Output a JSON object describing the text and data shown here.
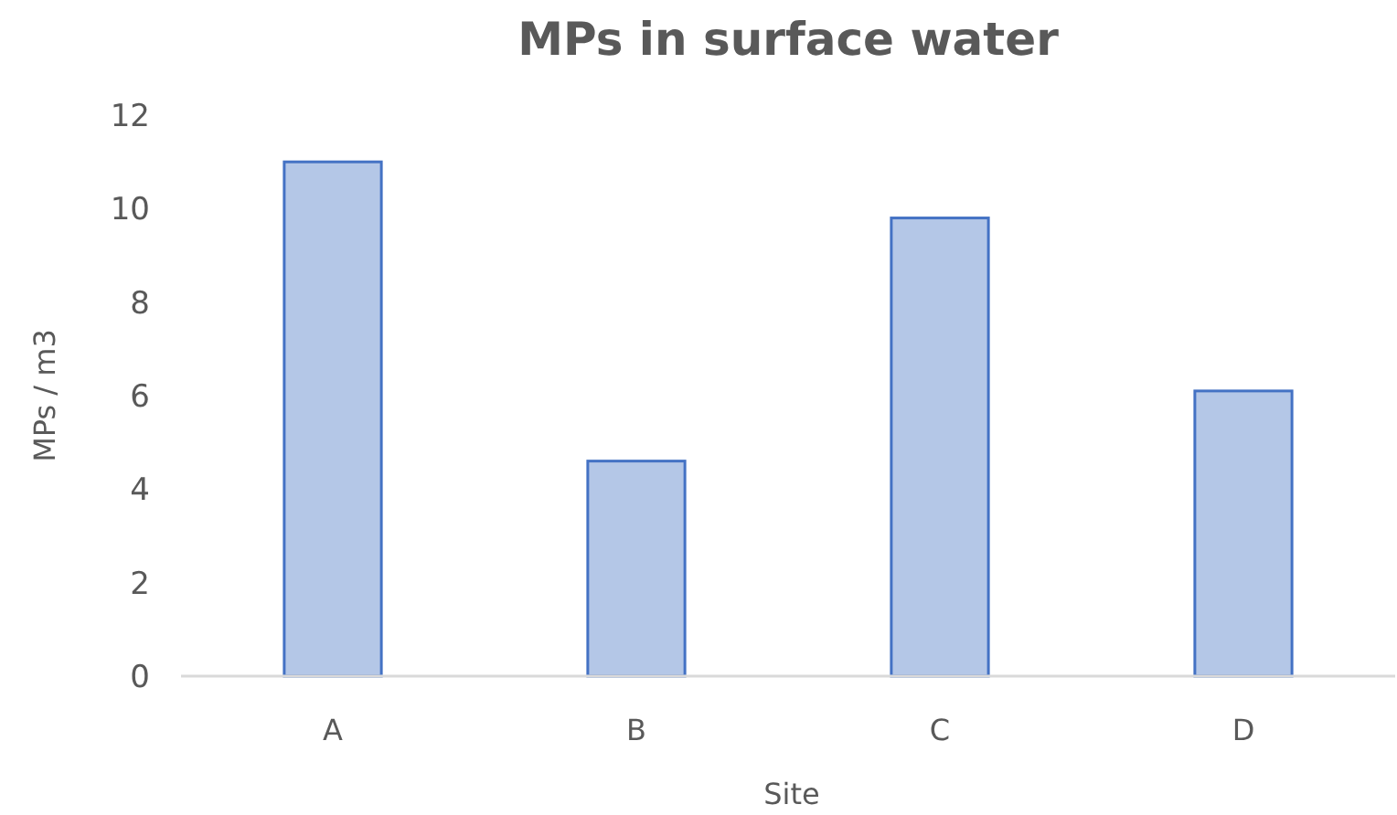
{
  "chart_data": {
    "type": "bar",
    "title": "MPs in surface water",
    "xlabel": "Site",
    "ylabel": "MPs / m3",
    "categories": [
      "A",
      "B",
      "C",
      "D"
    ],
    "values": [
      11,
      4.6,
      9.8,
      6.1
    ],
    "color": "#b4c7e7",
    "ylim": [
      0,
      12
    ],
    "yticks": [
      0,
      2,
      4,
      6,
      8,
      10,
      12
    ],
    "grid": false
  }
}
